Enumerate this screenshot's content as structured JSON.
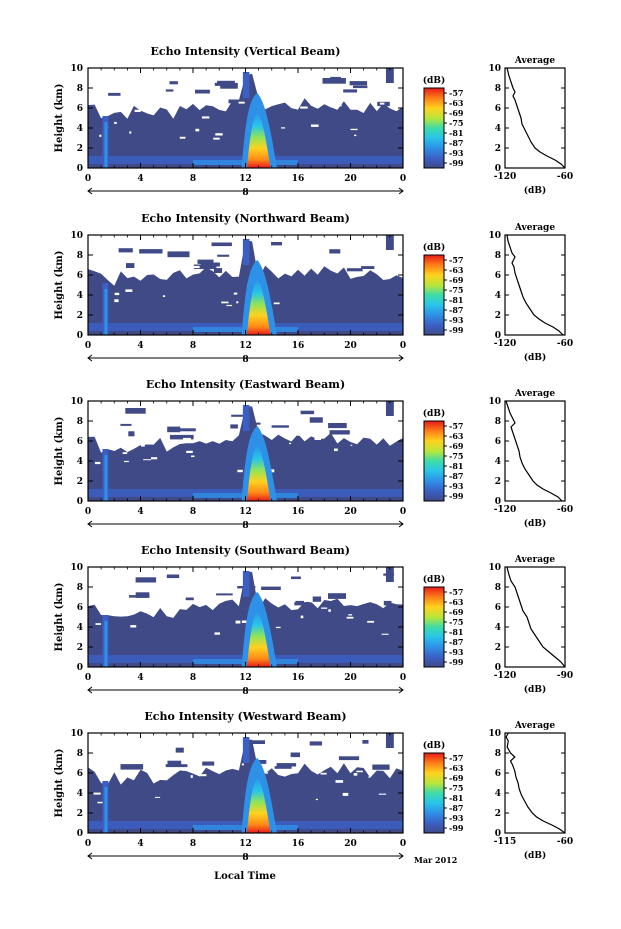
{
  "figure": {
    "bottom_label": "Local Time",
    "date_label": "Mar 2012",
    "day_label": "8",
    "background_color": "#3f4a86"
  },
  "chart_data": [
    {
      "type": "heatmap",
      "title": "Echo Intensity (Vertical Beam)",
      "ylabel": "Height (km)",
      "xlim": [
        0,
        24
      ],
      "ylim": [
        0,
        10
      ],
      "x_ticks": [
        "0",
        "4",
        "8",
        "12",
        "16",
        "20",
        "0"
      ],
      "y_ticks": [
        "0",
        "2",
        "4",
        "6",
        "8",
        "10"
      ],
      "colorbar": {
        "unit": "(dB)",
        "ticks": [
          "-57",
          "-63",
          "-69",
          "-75",
          "-81",
          "-87",
          "-93",
          "-99"
        ]
      },
      "profile": {
        "title": "Average",
        "xlabel": "(dB)",
        "x_ticks": [
          "-120",
          "-60"
        ],
        "xlim": [
          -120,
          -60
        ],
        "points": [
          [
            -60,
            0
          ],
          [
            -64,
            0.4
          ],
          [
            -70,
            0.8
          ],
          [
            -78,
            1.2
          ],
          [
            -85,
            1.6
          ],
          [
            -90,
            2
          ],
          [
            -94,
            2.6
          ],
          [
            -97,
            3.2
          ],
          [
            -100,
            3.8
          ],
          [
            -103,
            4.4
          ],
          [
            -104,
            5
          ],
          [
            -106,
            5.6
          ],
          [
            -108,
            6.2
          ],
          [
            -110,
            6.8
          ],
          [
            -112,
            7.2
          ],
          [
            -110,
            7.6
          ],
          [
            -112,
            8
          ],
          [
            -114,
            8.6
          ],
          [
            -116,
            9.2
          ],
          [
            -118,
            10
          ]
        ]
      }
    },
    {
      "type": "heatmap",
      "title": "Echo Intensity (Northward Beam)",
      "ylabel": "Height (km)",
      "xlim": [
        0,
        24
      ],
      "ylim": [
        0,
        10
      ],
      "x_ticks": [
        "0",
        "4",
        "8",
        "12",
        "16",
        "20",
        "0"
      ],
      "y_ticks": [
        "0",
        "2",
        "4",
        "6",
        "8",
        "10"
      ],
      "colorbar": {
        "unit": "(dB)",
        "ticks": [
          "-57",
          "-63",
          "-69",
          "-75",
          "-81",
          "-87",
          "-93",
          "-99"
        ]
      },
      "profile": {
        "title": "Average",
        "xlabel": "(dB)",
        "x_ticks": [
          "-120",
          "-60"
        ],
        "xlim": [
          -120,
          -60
        ],
        "points": [
          [
            -62,
            0
          ],
          [
            -66,
            0.4
          ],
          [
            -72,
            0.8
          ],
          [
            -80,
            1.2
          ],
          [
            -86,
            1.6
          ],
          [
            -91,
            2
          ],
          [
            -95,
            2.6
          ],
          [
            -99,
            3.2
          ],
          [
            -102,
            3.8
          ],
          [
            -104,
            4.4
          ],
          [
            -106,
            5
          ],
          [
            -108,
            5.6
          ],
          [
            -110,
            6.2
          ],
          [
            -111,
            6.8
          ],
          [
            -113,
            7.2
          ],
          [
            -110,
            7.8
          ],
          [
            -113,
            8.2
          ],
          [
            -115,
            8.8
          ],
          [
            -117,
            9.4
          ],
          [
            -118,
            10
          ]
        ]
      }
    },
    {
      "type": "heatmap",
      "title": "Echo Intensity (Eastward Beam)",
      "ylabel": "Height (km)",
      "xlim": [
        0,
        24
      ],
      "ylim": [
        0,
        10
      ],
      "x_ticks": [
        "0",
        "4",
        "8",
        "12",
        "16",
        "20",
        "0"
      ],
      "y_ticks": [
        "0",
        "2",
        "4",
        "6",
        "8",
        "10"
      ],
      "colorbar": {
        "unit": "(dB)",
        "ticks": [
          "-57",
          "-63",
          "-69",
          "-75",
          "-81",
          "-87",
          "-93",
          "-99"
        ]
      },
      "profile": {
        "title": "Average",
        "xlabel": "(dB)",
        "x_ticks": [
          "-120",
          "-60"
        ],
        "xlim": [
          -120,
          -60
        ],
        "points": [
          [
            -63,
            0
          ],
          [
            -67,
            0.4
          ],
          [
            -74,
            0.8
          ],
          [
            -82,
            1.2
          ],
          [
            -88,
            1.6
          ],
          [
            -92,
            2
          ],
          [
            -96,
            2.6
          ],
          [
            -100,
            3.2
          ],
          [
            -103,
            3.8
          ],
          [
            -105,
            4.4
          ],
          [
            -106,
            5
          ],
          [
            -108,
            5.6
          ],
          [
            -110,
            6.2
          ],
          [
            -112,
            6.8
          ],
          [
            -114,
            7.4
          ],
          [
            -110,
            7.8
          ],
          [
            -112,
            8.2
          ],
          [
            -115,
            8.8
          ],
          [
            -117,
            9.4
          ],
          [
            -119,
            10
          ]
        ]
      }
    },
    {
      "type": "heatmap",
      "title": "Echo Intensity (Southward Beam)",
      "ylabel": "Height (km)",
      "xlim": [
        0,
        24
      ],
      "ylim": [
        0,
        10
      ],
      "x_ticks": [
        "0",
        "4",
        "8",
        "12",
        "16",
        "20",
        "0"
      ],
      "y_ticks": [
        "0",
        "2",
        "4",
        "6",
        "8",
        "10"
      ],
      "colorbar": {
        "unit": "(dB)",
        "ticks": [
          "-57",
          "-63",
          "-69",
          "-75",
          "-81",
          "-87",
          "-93",
          "-99"
        ]
      },
      "profile": {
        "title": "Average",
        "xlabel": "(dB)",
        "x_ticks": [
          "-120",
          "-90"
        ],
        "xlim": [
          -120,
          -90
        ],
        "points": [
          [
            -90,
            0
          ],
          [
            -92,
            0.5
          ],
          [
            -95,
            1
          ],
          [
            -98,
            1.5
          ],
          [
            -101,
            2
          ],
          [
            -103,
            2.6
          ],
          [
            -105,
            3.2
          ],
          [
            -107,
            3.8
          ],
          [
            -108,
            4.4
          ],
          [
            -109,
            5
          ],
          [
            -111,
            5.6
          ],
          [
            -112,
            6.2
          ],
          [
            -113,
            6.8
          ],
          [
            -114,
            7.4
          ],
          [
            -115,
            8
          ],
          [
            -117,
            8.6
          ],
          [
            -118,
            9.2
          ],
          [
            -119,
            10
          ]
        ]
      }
    },
    {
      "type": "heatmap",
      "title": "Echo Intensity (Westward Beam)",
      "ylabel": "Height (km)",
      "xlim": [
        0,
        24
      ],
      "ylim": [
        0,
        10
      ],
      "x_ticks": [
        "0",
        "4",
        "8",
        "12",
        "16",
        "20",
        "0"
      ],
      "y_ticks": [
        "0",
        "2",
        "4",
        "6",
        "8",
        "10"
      ],
      "colorbar": {
        "unit": "(dB)",
        "ticks": [
          "-57",
          "-63",
          "-69",
          "-75",
          "-81",
          "-87",
          "-93",
          "-99"
        ]
      },
      "profile": {
        "title": "Average",
        "xlabel": "(dB)",
        "x_ticks": [
          "-115",
          "-60"
        ],
        "xlim": [
          -115,
          -60
        ],
        "points": [
          [
            -60,
            0
          ],
          [
            -65,
            0.4
          ],
          [
            -72,
            0.8
          ],
          [
            -80,
            1.2
          ],
          [
            -86,
            1.6
          ],
          [
            -90,
            2
          ],
          [
            -94,
            2.6
          ],
          [
            -97,
            3.2
          ],
          [
            -100,
            3.8
          ],
          [
            -102,
            4.4
          ],
          [
            -103,
            5
          ],
          [
            -105,
            5.6
          ],
          [
            -106,
            6.2
          ],
          [
            -108,
            6.8
          ],
          [
            -110,
            7.2
          ],
          [
            -106,
            7.6
          ],
          [
            -110,
            8
          ],
          [
            -113,
            8.6
          ],
          [
            -112,
            9.2
          ],
          [
            -114,
            9.6
          ],
          [
            -112,
            10
          ]
        ]
      }
    }
  ]
}
